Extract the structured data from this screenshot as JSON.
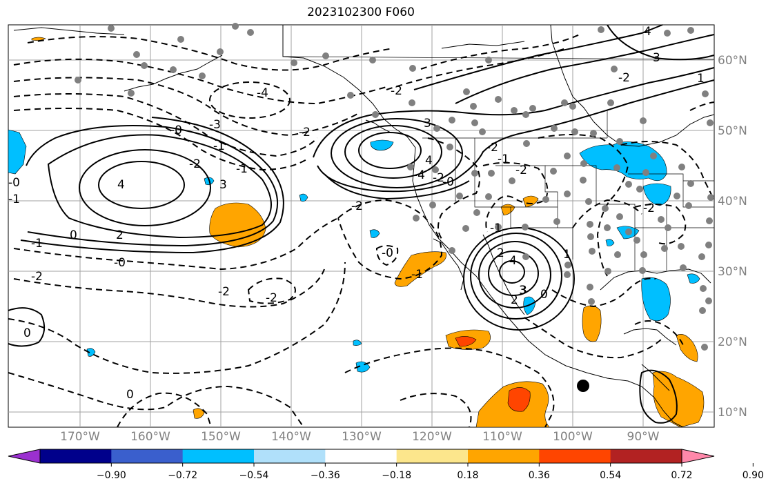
{
  "title": "2023102300 F060",
  "lat_labels": [
    "60°N",
    "50°N",
    "40°N",
    "30°N",
    "20°N",
    "10°N"
  ],
  "lon_labels": [
    "170°W",
    "160°W",
    "150°W",
    "140°W",
    "130°W",
    "120°W",
    "110°W",
    "100°W",
    "90°W"
  ],
  "colorbar": {
    "colors": [
      "#9b30d0",
      "#00008b",
      "#3a5fcd",
      "#00bfff",
      "#b0e0fa",
      "#ffffff",
      "#fce68c",
      "#ffa500",
      "#ff4500",
      "#b22222",
      "#ff88aa"
    ],
    "ticks": [
      "−0.90",
      "−0.72",
      "−0.54",
      "−0.36",
      "−0.18",
      "0.18",
      "0.36",
      "0.54",
      "0.72",
      "0.90"
    ]
  },
  "contour_labels": [
    "4",
    "3",
    "1",
    "-4",
    "-2",
    "-0",
    "-3",
    "-1",
    "-0",
    "-1",
    "-2",
    "3",
    "4",
    "2",
    "-2",
    "-2",
    "-2",
    "-4",
    "-2",
    "-0",
    "-1",
    "-0",
    "-1",
    "-1",
    "-2",
    "3",
    "4",
    "3",
    "0",
    "-1",
    "-2",
    "-2",
    "0",
    "-2",
    "0",
    "-2",
    "2",
    "1",
    "4",
    "3",
    "2",
    "0",
    "-1",
    "-0",
    "-2"
  ],
  "map_colors": {
    "negative_fill": "#00bfff",
    "positive_fill": "#ffa500",
    "strong_positive_fill": "#ff4500",
    "station_dot": "#808080"
  }
}
